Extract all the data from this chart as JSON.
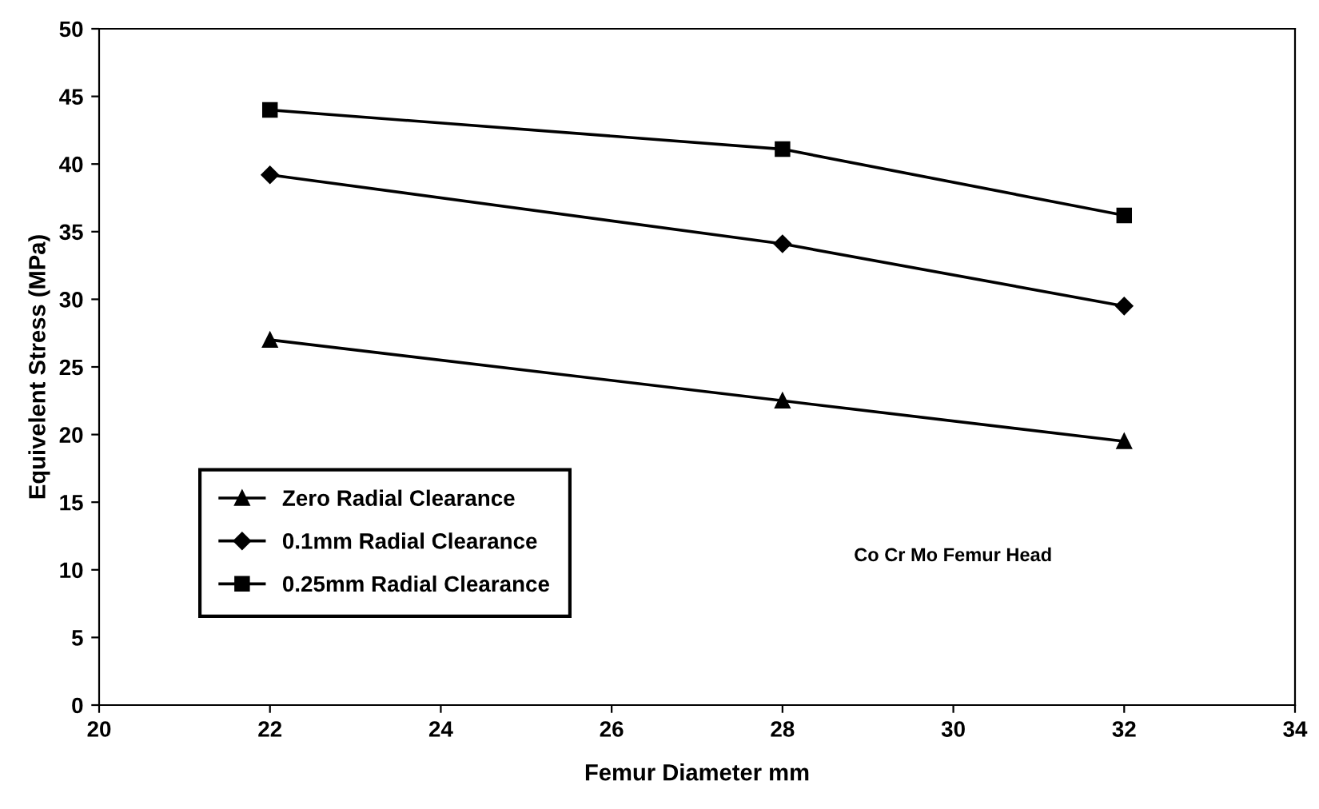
{
  "chart_data": {
    "type": "line",
    "xlabel": "Femur Diameter mm",
    "ylabel": "Equivelent Stress (MPa)",
    "x": [
      22,
      28,
      32
    ],
    "series": [
      {
        "name": "Zero Radial Clearance",
        "color": "#000000",
        "marker": "triangle",
        "values": [
          27,
          22.5,
          19.5
        ]
      },
      {
        "name": "0.1mm Radial Clearance",
        "color": "#000000",
        "marker": "diamond",
        "values": [
          39.2,
          34.1,
          29.5
        ]
      },
      {
        "name": "0.25mm Radial Clearance",
        "color": "#000000",
        "marker": "square",
        "values": [
          44,
          41.1,
          36.2
        ]
      }
    ],
    "xlim": [
      20,
      34
    ],
    "xticks": [
      20,
      22,
      24,
      26,
      28,
      30,
      32,
      34
    ],
    "ylim": [
      0,
      50
    ],
    "yticks": [
      0,
      5,
      10,
      15,
      20,
      25,
      30,
      35,
      40,
      45,
      50
    ],
    "grid": false,
    "legend": "bottom left",
    "line_style": "solid",
    "annotations": [
      "Co Cr Mo Femur Head"
    ]
  }
}
